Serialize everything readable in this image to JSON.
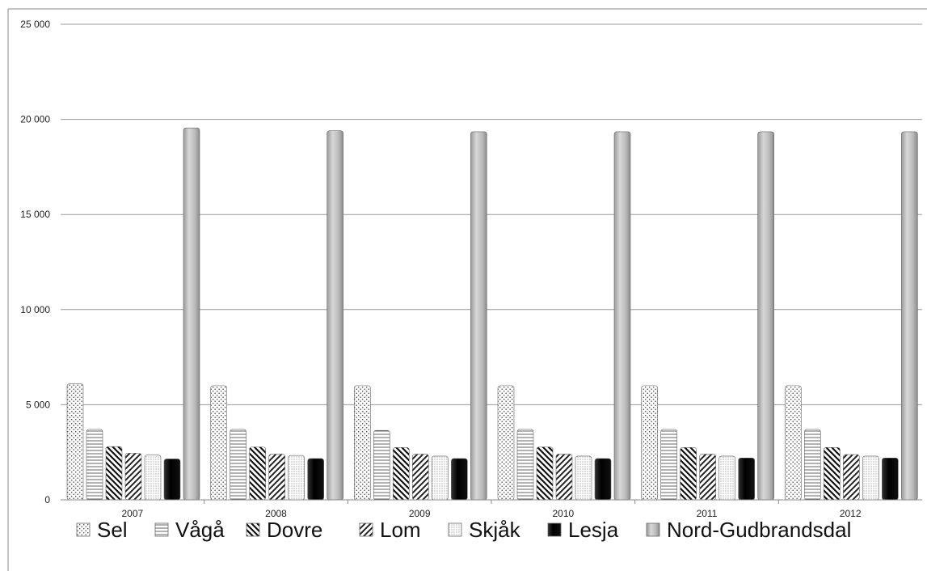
{
  "chart_data": {
    "type": "bar",
    "title": "",
    "xlabel": "",
    "ylabel": "",
    "categories": [
      "2007",
      "2008",
      "2009",
      "2010",
      "2011",
      "2012"
    ],
    "ylim": [
      0,
      25000
    ],
    "yticks": [
      0,
      5000,
      10000,
      15000,
      20000,
      25000
    ],
    "ytick_labels": [
      "0",
      "5 000",
      "10 000",
      "15 000",
      "20 000",
      "25 000"
    ],
    "grid": true,
    "legend_position": "bottom",
    "series": [
      {
        "name": "Sel",
        "pattern": "dots",
        "values": [
          6100,
          6000,
          6000,
          6000,
          6000,
          6000
        ]
      },
      {
        "name": "Vågå",
        "pattern": "horizontal-lines",
        "values": [
          3700,
          3700,
          3650,
          3700,
          3700,
          3700
        ]
      },
      {
        "name": "Dovre",
        "pattern": "diagonal-back",
        "values": [
          2800,
          2780,
          2750,
          2780,
          2750,
          2750
        ]
      },
      {
        "name": "Lom",
        "pattern": "diagonal-forward",
        "values": [
          2450,
          2400,
          2400,
          2400,
          2400,
          2380
        ]
      },
      {
        "name": "Skjåk",
        "pattern": "fine-dots",
        "values": [
          2350,
          2330,
          2300,
          2300,
          2300,
          2300
        ]
      },
      {
        "name": "Lesja",
        "pattern": "solid-black",
        "values": [
          2150,
          2170,
          2170,
          2170,
          2200,
          2200
        ]
      },
      {
        "name": "Nord-Gudbrandsdal",
        "pattern": "gradient-gray",
        "values": [
          19550,
          19400,
          19350,
          19350,
          19350,
          19350
        ]
      }
    ]
  }
}
